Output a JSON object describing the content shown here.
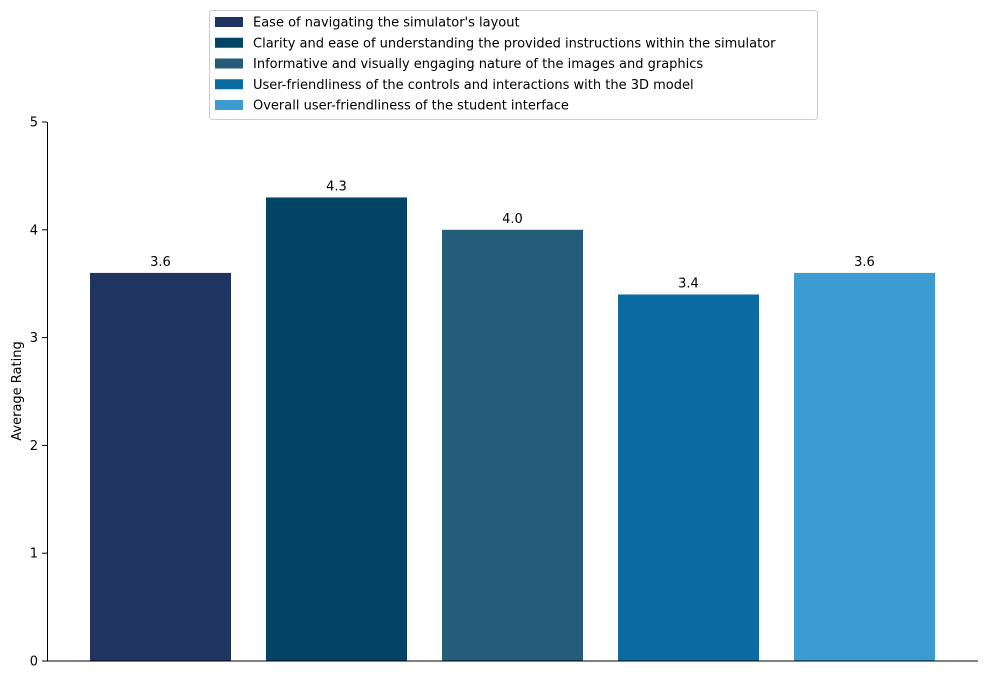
{
  "chart_data": {
    "type": "bar",
    "series": [
      {
        "name": "Ease of navigating the simulator's layout",
        "value": 3.6,
        "label": "3.6",
        "color": "#1f3461"
      },
      {
        "name": "Clarity and ease of understanding the provided instructions within the simulator",
        "value": 4.3,
        "label": "4.3",
        "color": "#034465"
      },
      {
        "name": "Informative and visually engaging nature of the images and graphics",
        "value": 4.0,
        "label": "4.0",
        "color": "#245c79"
      },
      {
        "name": "User-friendliness of the controls and interactions with the 3D model",
        "value": 3.4,
        "label": "3.4",
        "color": "#096ba1"
      },
      {
        "name": "Overall user-friendliness of the student interface",
        "value": 3.6,
        "label": "3.6",
        "color": "#3d9ccf"
      }
    ],
    "xlabel": "",
    "ylabel": "Average Rating",
    "ylim": [
      0,
      5
    ],
    "yticks": [
      "0",
      "1",
      "2",
      "3",
      "4",
      "5"
    ],
    "grid": false,
    "legend_position": "top-center"
  }
}
